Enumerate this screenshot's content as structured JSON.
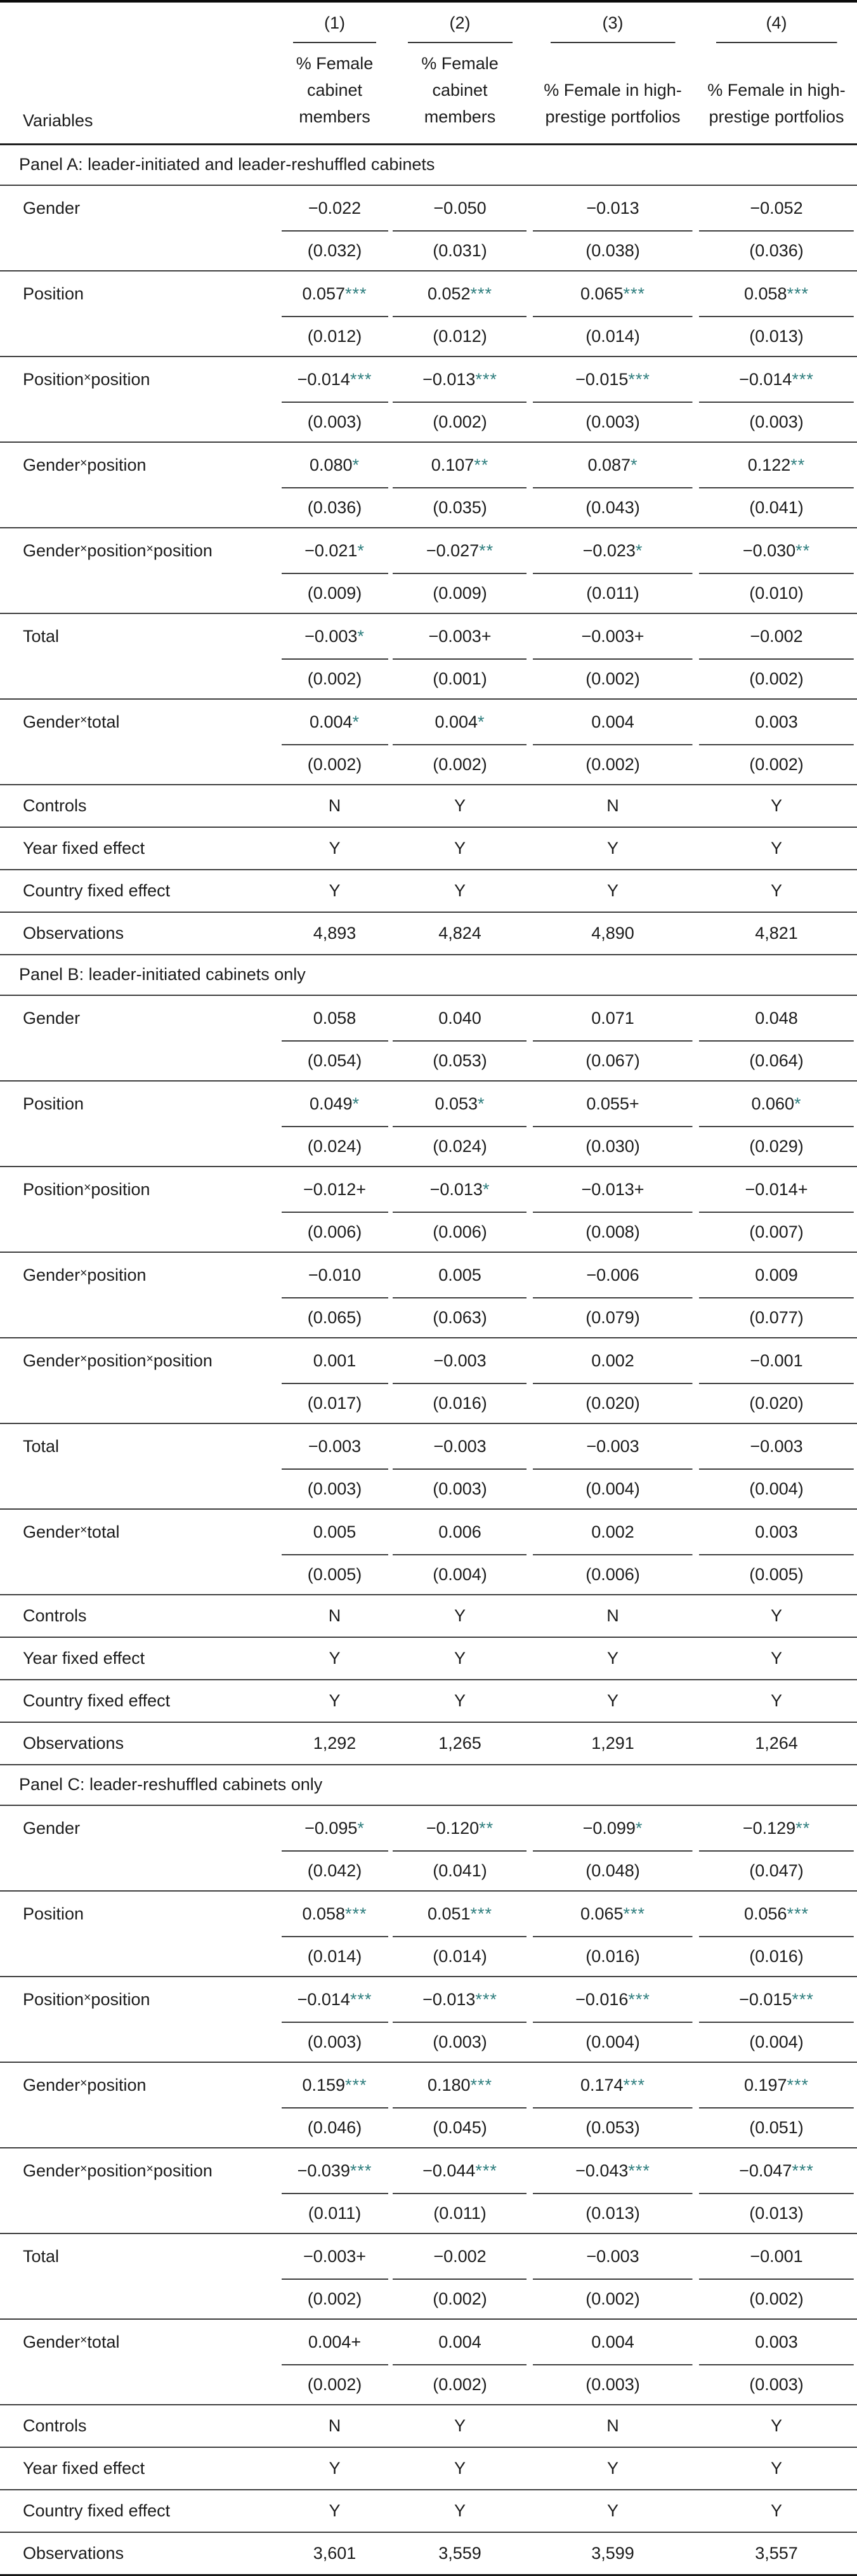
{
  "table": {
    "significance_star_color": "#2e7e7e",
    "variables_label": "Variables",
    "columns": [
      "(1)",
      "(2)",
      "(3)",
      "(4)"
    ],
    "column_headers": [
      "% Female cabinet members",
      "% Female cabinet members",
      "% Female in high-prestige portfolios",
      "% Female in high-prestige portfolios"
    ],
    "panels": [
      {
        "title": "Panel A: leader-initiated and leader-reshuffled cabinets",
        "rows": [
          {
            "label": "Gender",
            "coef": [
              "−0.022",
              "−0.050",
              "−0.013",
              "−0.052"
            ],
            "stars": [
              "",
              "",
              "",
              ""
            ],
            "se": [
              "(0.032)",
              "(0.031)",
              "(0.038)",
              "(0.036)"
            ]
          },
          {
            "label": "Position",
            "coef": [
              "0.057",
              "0.052",
              "0.065",
              "0.058"
            ],
            "stars": [
              "***",
              "***",
              "***",
              "***"
            ],
            "se": [
              "(0.012)",
              "(0.012)",
              "(0.014)",
              "(0.013)"
            ]
          },
          {
            "label": "Position×position",
            "coef": [
              "−0.014",
              "−0.013",
              "−0.015",
              "−0.014"
            ],
            "stars": [
              "***",
              "***",
              "***",
              "***"
            ],
            "se": [
              "(0.003)",
              "(0.002)",
              "(0.003)",
              "(0.003)"
            ]
          },
          {
            "label": "Gender×position",
            "coef": [
              "0.080",
              "0.107",
              "0.087",
              "0.122"
            ],
            "stars": [
              "*",
              "**",
              "*",
              "**"
            ],
            "se": [
              "(0.036)",
              "(0.035)",
              "(0.043)",
              "(0.041)"
            ]
          },
          {
            "label": "Gender×position×position",
            "coef": [
              "−0.021",
              "−0.027",
              "−0.023",
              "−0.030"
            ],
            "stars": [
              "*",
              "**",
              "*",
              "**"
            ],
            "se": [
              "(0.009)",
              "(0.009)",
              "(0.011)",
              "(0.010)"
            ]
          },
          {
            "label": "Total",
            "coef": [
              "−0.003",
              "−0.003+",
              "−0.003+",
              "−0.002"
            ],
            "stars": [
              "*",
              "",
              "",
              ""
            ],
            "se": [
              "(0.002)",
              "(0.001)",
              "(0.002)",
              "(0.002)"
            ]
          },
          {
            "label": "Gender×total",
            "coef": [
              "0.004",
              "0.004",
              "0.004",
              "0.003"
            ],
            "stars": [
              "*",
              "*",
              "",
              ""
            ],
            "se": [
              "(0.002)",
              "(0.002)",
              "(0.002)",
              "(0.002)"
            ]
          }
        ],
        "summary": [
          {
            "label": "Controls",
            "values": [
              "N",
              "Y",
              "N",
              "Y"
            ]
          },
          {
            "label": "Year fixed effect",
            "values": [
              "Y",
              "Y",
              "Y",
              "Y"
            ]
          },
          {
            "label": "Country fixed effect",
            "values": [
              "Y",
              "Y",
              "Y",
              "Y"
            ]
          },
          {
            "label": "Observations",
            "values": [
              "4,893",
              "4,824",
              "4,890",
              "4,821"
            ]
          }
        ]
      },
      {
        "title": "Panel B: leader-initiated cabinets only",
        "rows": [
          {
            "label": "Gender",
            "coef": [
              "0.058",
              "0.040",
              "0.071",
              "0.048"
            ],
            "stars": [
              "",
              "",
              "",
              ""
            ],
            "se": [
              "(0.054)",
              "(0.053)",
              "(0.067)",
              "(0.064)"
            ]
          },
          {
            "label": "Position",
            "coef": [
              "0.049",
              "0.053",
              "0.055+",
              "0.060"
            ],
            "stars": [
              "*",
              "*",
              "",
              "*"
            ],
            "se": [
              "(0.024)",
              "(0.024)",
              "(0.030)",
              "(0.029)"
            ]
          },
          {
            "label": "Position×position",
            "coef": [
              "−0.012+",
              "−0.013",
              "−0.013+",
              "−0.014+"
            ],
            "stars": [
              "",
              "*",
              "",
              ""
            ],
            "se": [
              "(0.006)",
              "(0.006)",
              "(0.008)",
              "(0.007)"
            ]
          },
          {
            "label": "Gender×position",
            "coef": [
              "−0.010",
              "0.005",
              "−0.006",
              "0.009"
            ],
            "stars": [
              "",
              "",
              "",
              ""
            ],
            "se": [
              "(0.065)",
              "(0.063)",
              "(0.079)",
              "(0.077)"
            ]
          },
          {
            "label": "Gender×position×position",
            "coef": [
              "0.001",
              "−0.003",
              "0.002",
              "−0.001"
            ],
            "stars": [
              "",
              "",
              "",
              ""
            ],
            "se": [
              "(0.017)",
              "(0.016)",
              "(0.020)",
              "(0.020)"
            ]
          },
          {
            "label": "Total",
            "coef": [
              "−0.003",
              "−0.003",
              "−0.003",
              "−0.003"
            ],
            "stars": [
              "",
              "",
              "",
              ""
            ],
            "se": [
              "(0.003)",
              "(0.003)",
              "(0.004)",
              "(0.004)"
            ]
          },
          {
            "label": "Gender×total",
            "coef": [
              "0.005",
              "0.006",
              "0.002",
              "0.003"
            ],
            "stars": [
              "",
              "",
              "",
              ""
            ],
            "se": [
              "(0.005)",
              "(0.004)",
              "(0.006)",
              "(0.005)"
            ]
          }
        ],
        "summary": [
          {
            "label": "Controls",
            "values": [
              "N",
              "Y",
              "N",
              "Y"
            ]
          },
          {
            "label": "Year fixed effect",
            "values": [
              "Y",
              "Y",
              "Y",
              "Y"
            ]
          },
          {
            "label": "Country fixed effect",
            "values": [
              "Y",
              "Y",
              "Y",
              "Y"
            ]
          },
          {
            "label": "Observations",
            "values": [
              "1,292",
              "1,265",
              "1,291",
              "1,264"
            ]
          }
        ]
      },
      {
        "title": "Panel C: leader-reshuffled cabinets only",
        "rows": [
          {
            "label": "Gender",
            "coef": [
              "−0.095",
              "−0.120",
              "−0.099",
              "−0.129"
            ],
            "stars": [
              "*",
              "**",
              "*",
              "**"
            ],
            "se": [
              "(0.042)",
              "(0.041)",
              "(0.048)",
              "(0.047)"
            ]
          },
          {
            "label": "Position",
            "coef": [
              "0.058",
              "0.051",
              "0.065",
              "0.056"
            ],
            "stars": [
              "***",
              "***",
              "***",
              "***"
            ],
            "se": [
              "(0.014)",
              "(0.014)",
              "(0.016)",
              "(0.016)"
            ]
          },
          {
            "label": "Position×position",
            "coef": [
              "−0.014",
              "−0.013",
              "−0.016",
              "−0.015"
            ],
            "stars": [
              "***",
              "***",
              "***",
              "***"
            ],
            "se": [
              "(0.003)",
              "(0.003)",
              "(0.004)",
              "(0.004)"
            ]
          },
          {
            "label": "Gender×position",
            "coef": [
              "0.159",
              "0.180",
              "0.174",
              "0.197"
            ],
            "stars": [
              "***",
              "***",
              "***",
              "***"
            ],
            "se": [
              "(0.046)",
              "(0.045)",
              "(0.053)",
              "(0.051)"
            ]
          },
          {
            "label": "Gender×position×position",
            "coef": [
              "−0.039",
              "−0.044",
              "−0.043",
              "−0.047"
            ],
            "stars": [
              "***",
              "***",
              "***",
              "***"
            ],
            "se": [
              "(0.011)",
              "(0.011)",
              "(0.013)",
              "(0.013)"
            ]
          },
          {
            "label": "Total",
            "coef": [
              "−0.003+",
              "−0.002",
              "−0.003",
              "−0.001"
            ],
            "stars": [
              "",
              "",
              "",
              ""
            ],
            "se": [
              "(0.002)",
              "(0.002)",
              "(0.002)",
              "(0.002)"
            ]
          },
          {
            "label": "Gender×total",
            "coef": [
              "0.004+",
              "0.004",
              "0.004",
              "0.003"
            ],
            "stars": [
              "",
              "",
              "",
              ""
            ],
            "se": [
              "(0.002)",
              "(0.002)",
              "(0.003)",
              "(0.003)"
            ]
          }
        ],
        "summary": [
          {
            "label": "Controls",
            "values": [
              "N",
              "Y",
              "N",
              "Y"
            ]
          },
          {
            "label": "Year fixed effect",
            "values": [
              "Y",
              "Y",
              "Y",
              "Y"
            ]
          },
          {
            "label": "Country fixed effect",
            "values": [
              "Y",
              "Y",
              "Y",
              "Y"
            ]
          },
          {
            "label": "Observations",
            "values": [
              "3,601",
              "3,559",
              "3,599",
              "3,557"
            ]
          }
        ]
      }
    ]
  }
}
